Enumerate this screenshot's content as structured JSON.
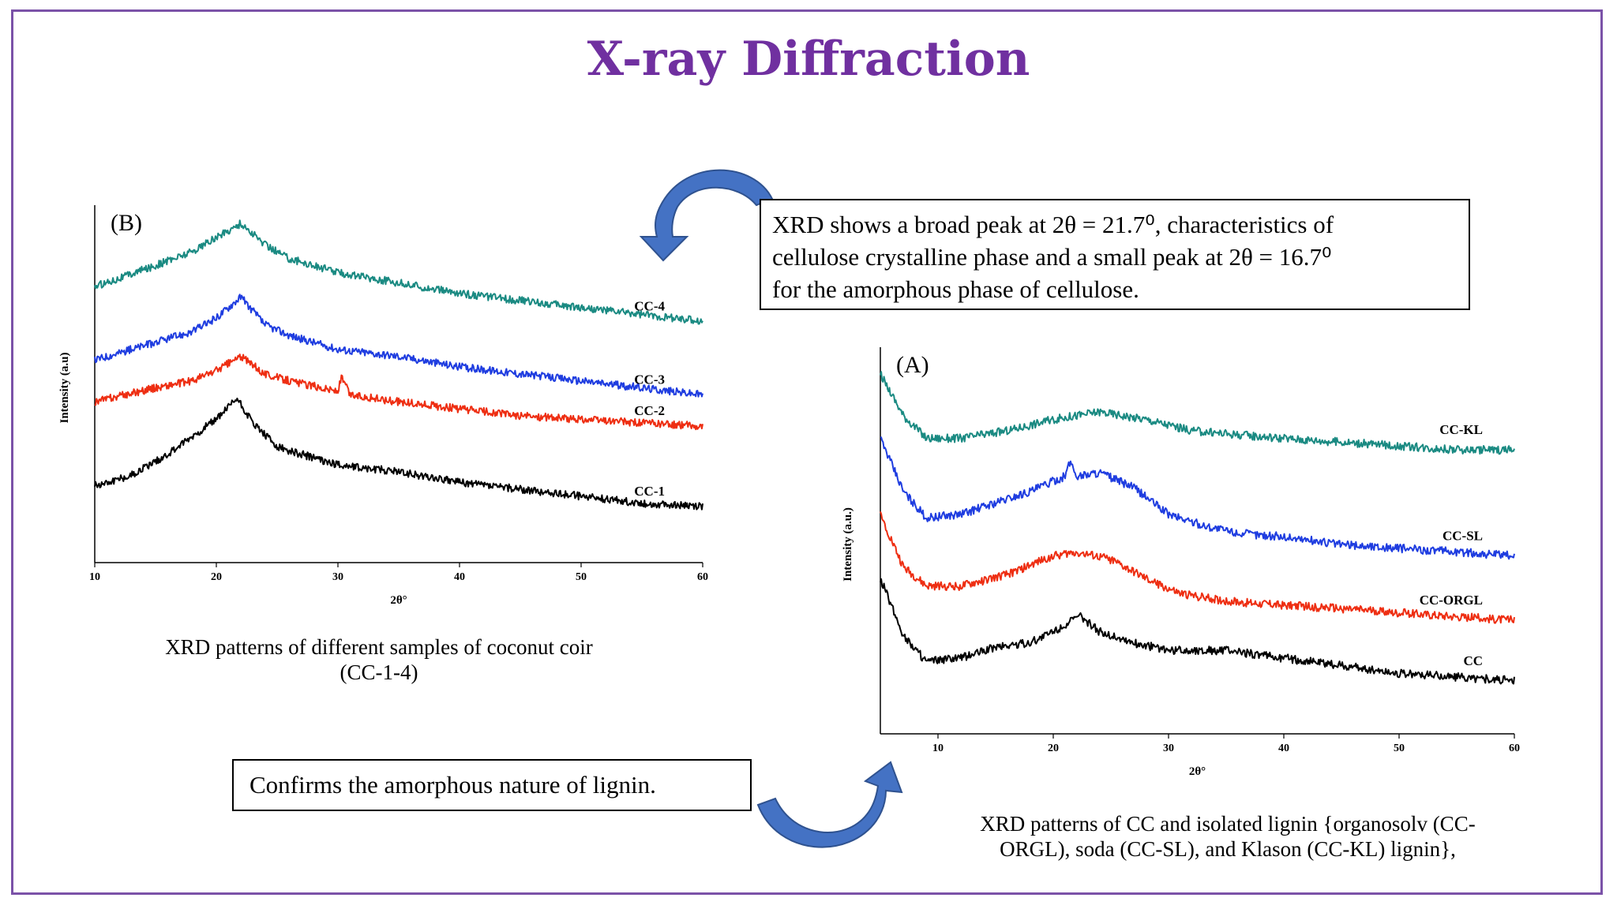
{
  "title": "X-ray Diffraction",
  "callouts": {
    "top_lines": [
      "XRD shows a broad peak at 2θ = 21.7⁰, characteristics of",
      "cellulose crystalline phase and a small peak at 2θ = 16.7⁰",
      "for the amorphous phase of cellulose."
    ],
    "bottom": "Confirms the amorphous nature of lignin."
  },
  "captions": {
    "b_line1": "XRD patterns of different samples of coconut coir",
    "b_line2": "(CC-1-4)",
    "a_line1": "XRD patterns of CC and isolated lignin {organosolv (CC-",
    "a_line2": "ORGL), soda (CC-SL), and Klason (CC-KL) lignin},"
  },
  "colors": {
    "title": "#7030a0",
    "frame": "#7b52a8",
    "arrow": "#4472c4"
  },
  "icons": [
    "curved-arrow-icon",
    "curved-arrow-icon"
  ],
  "chart_data": [
    {
      "type": "line",
      "panel_label": "(B)",
      "xlabel": "2θ°",
      "ylabel": "Intensity (a.u)",
      "xlim": [
        10,
        60
      ],
      "xticks": [
        "10",
        "20",
        "30",
        "40",
        "50",
        "60"
      ],
      "series": [
        {
          "name": "CC-4",
          "color": "#1a8a82",
          "x": [
            10,
            15,
            18,
            20,
            22,
            24,
            26,
            30,
            35,
            40,
            45,
            50,
            55,
            60
          ],
          "y": [
            0.79,
            0.85,
            0.89,
            0.93,
            0.97,
            0.91,
            0.87,
            0.83,
            0.8,
            0.77,
            0.75,
            0.73,
            0.71,
            0.69
          ]
        },
        {
          "name": "CC-3",
          "color": "#1f3de0",
          "x": [
            10,
            15,
            18,
            20,
            22,
            24,
            26,
            30,
            35,
            40,
            45,
            50,
            55,
            60
          ],
          "y": [
            0.58,
            0.63,
            0.66,
            0.7,
            0.76,
            0.68,
            0.65,
            0.61,
            0.59,
            0.56,
            0.54,
            0.52,
            0.5,
            0.48
          ]
        },
        {
          "name": "CC-2",
          "color": "#ee2e12",
          "x": [
            10,
            15,
            18,
            20,
            22,
            24,
            26,
            30,
            30.3,
            31,
            35,
            40,
            45,
            50,
            55,
            60
          ],
          "y": [
            0.46,
            0.5,
            0.52,
            0.55,
            0.59,
            0.54,
            0.52,
            0.49,
            0.53,
            0.48,
            0.46,
            0.44,
            0.42,
            0.41,
            0.4,
            0.39
          ]
        },
        {
          "name": "CC-1",
          "color": "#000000",
          "x": [
            10,
            13,
            16,
            18,
            20,
            21.7,
            23,
            25,
            28,
            30,
            35,
            40,
            45,
            50,
            55,
            60
          ],
          "y": [
            0.22,
            0.25,
            0.31,
            0.36,
            0.41,
            0.47,
            0.4,
            0.33,
            0.3,
            0.28,
            0.26,
            0.23,
            0.21,
            0.19,
            0.17,
            0.16
          ]
        }
      ]
    },
    {
      "type": "line",
      "panel_label": "(A)",
      "xlabel": "2θ°",
      "ylabel": "Intensity (a.u.)",
      "xlim": [
        5,
        60
      ],
      "xticks": [
        "10",
        "20",
        "30",
        "40",
        "50",
        "60"
      ],
      "series": [
        {
          "name": "CC-KL",
          "color": "#1a8a82",
          "x": [
            5,
            7,
            9,
            12,
            16,
            20,
            24,
            28,
            32,
            36,
            40,
            45,
            50,
            55,
            60
          ],
          "y": [
            0.95,
            0.84,
            0.78,
            0.78,
            0.8,
            0.83,
            0.85,
            0.83,
            0.8,
            0.79,
            0.78,
            0.77,
            0.76,
            0.75,
            0.75
          ]
        },
        {
          "name": "CC-SL",
          "color": "#1f3de0",
          "x": [
            5,
            7,
            9,
            12,
            15,
            18,
            21,
            21.5,
            22,
            24,
            27,
            30,
            33,
            36,
            40,
            45,
            50,
            55,
            60
          ],
          "y": [
            0.78,
            0.64,
            0.57,
            0.58,
            0.61,
            0.64,
            0.68,
            0.72,
            0.68,
            0.69,
            0.65,
            0.58,
            0.55,
            0.53,
            0.52,
            0.5,
            0.49,
            0.48,
            0.47
          ]
        },
        {
          "name": "CC-ORGL",
          "color": "#ee2e12",
          "x": [
            5,
            7,
            9,
            12,
            16,
            20,
            22,
            25,
            28,
            31,
            35,
            40,
            45,
            50,
            55,
            60
          ],
          "y": [
            0.58,
            0.44,
            0.39,
            0.39,
            0.42,
            0.47,
            0.48,
            0.46,
            0.41,
            0.37,
            0.35,
            0.34,
            0.33,
            0.32,
            0.31,
            0.3
          ]
        },
        {
          "name": "CC",
          "color": "#000000",
          "x": [
            5,
            7,
            9,
            12,
            15,
            18,
            20,
            22.3,
            24,
            27,
            30,
            35,
            40,
            45,
            50,
            55,
            60
          ],
          "y": [
            0.41,
            0.26,
            0.19,
            0.2,
            0.23,
            0.24,
            0.27,
            0.31,
            0.27,
            0.24,
            0.22,
            0.22,
            0.2,
            0.18,
            0.16,
            0.15,
            0.14
          ]
        }
      ]
    }
  ]
}
